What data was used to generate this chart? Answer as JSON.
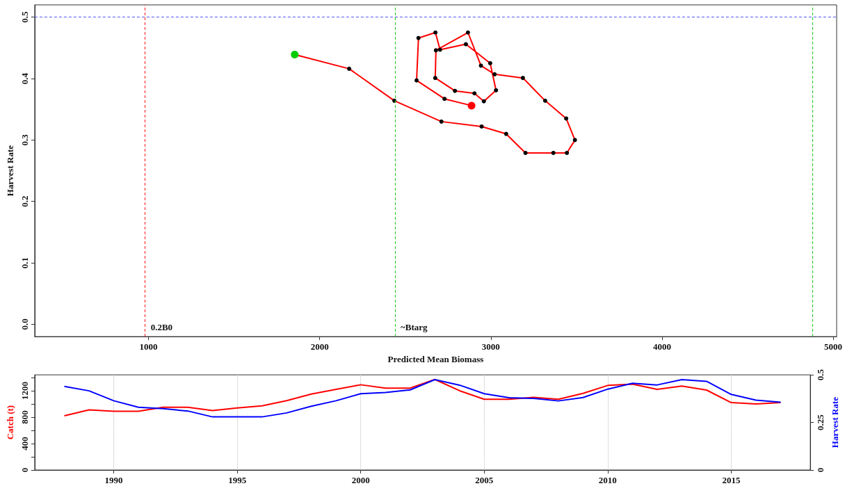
{
  "chart_data": [
    {
      "type": "line",
      "xlabel": "Predicted Mean Biomass",
      "ylabel": "Harvest Rate",
      "xlim": [
        335,
        5020
      ],
      "ylim": [
        -0.02,
        0.52
      ],
      "xticks": [
        1000,
        2000,
        3000,
        4000,
        5000
      ],
      "yticks": [
        {
          "value": 0,
          "label": "0.0"
        },
        {
          "value": 0.1,
          "label": "0.1"
        },
        {
          "value": 0.2,
          "label": "0.2"
        },
        {
          "value": 0.3,
          "label": "0.3"
        },
        {
          "value": 0.4,
          "label": "0.4"
        },
        {
          "value": 0.5,
          "label": "0.5"
        }
      ],
      "marker": "circle",
      "line_style": "solid",
      "grid": false,
      "series": [
        {
          "color": "#ff0000",
          "x": [
            1854,
            2172,
            2436,
            2711,
            2946,
            3089,
            3202,
            3365,
            3444,
            3491,
            3440,
            3317,
            3187,
            3022,
            2942,
            2866,
            2679,
            2675,
            2790,
            2904,
            2959,
            3030,
            2996,
            2854,
            2703,
            2676,
            2577,
            2566,
            2729,
            2887
          ],
          "values": [
            0.439,
            0.416,
            0.364,
            0.33,
            0.322,
            0.31,
            0.279,
            0.279,
            0.279,
            0.3,
            0.335,
            0.364,
            0.401,
            0.407,
            0.421,
            0.475,
            0.446,
            0.401,
            0.38,
            0.376,
            0.363,
            0.381,
            0.425,
            0.456,
            0.447,
            0.475,
            0.466,
            0.397,
            0.367,
            0.356
          ],
          "colors": [
            "#00cc00",
            "#000000",
            "#000000",
            "#000000",
            "#000000",
            "#000000",
            "#000000",
            "#000000",
            "#000000",
            "#000000",
            "#000000",
            "#000000",
            "#000000",
            "#000000",
            "#000000",
            "#000000",
            "#000000",
            "#000000",
            "#000000",
            "#000000",
            "#000000",
            "#000000",
            "#000000",
            "#000000",
            "#000000",
            "#000000",
            "#000000",
            "#000000",
            "#000000",
            "#ff0000"
          ]
        }
      ],
      "ref_lines": [
        {
          "axis": "x",
          "value": 980,
          "label": "0.2B0",
          "color": "#ff3333",
          "line_style": "dashed"
        },
        {
          "axis": "x",
          "value": 2440,
          "label": "~Btarg",
          "color": "#33cc33",
          "line_style": "dashed"
        },
        {
          "axis": "x",
          "value": 4880,
          "color": "#33cc33",
          "line_style": "dashed"
        },
        {
          "axis": "y",
          "value": 0.5,
          "color": "#5555ff",
          "line_style": "dashed"
        }
      ]
    },
    {
      "type": "line",
      "ylabel": "Catch (t)",
      "y2label": "Harvest Rate",
      "xlim": [
        1986.8,
        2018.2
      ],
      "ylim": [
        0,
        1440
      ],
      "y2lim": [
        0,
        0.5
      ],
      "xticks": [
        1990,
        1995,
        2000,
        2005,
        2010,
        2015
      ],
      "yticks": [
        0,
        {
          "value": 200,
          "label": null
        },
        400,
        {
          "value": 600,
          "label": null
        },
        800,
        {
          "value": 1000,
          "label": null
        },
        1200,
        {
          "value": 1400,
          "label": null
        }
      ],
      "y2ticks": [
        0,
        0.25,
        0.5
      ],
      "grid": "x",
      "line_style": "solid",
      "x": [
        1988,
        1989,
        1990,
        1991,
        1992,
        1993,
        1994,
        1995,
        1996,
        1997,
        1998,
        1999,
        2000,
        2001,
        2002,
        2003,
        2004,
        2005,
        2006,
        2007,
        2008,
        2009,
        2010,
        2011,
        2012,
        2013,
        2014,
        2015,
        2016,
        2017
      ],
      "series": [
        {
          "color": "#ff0000",
          "values": [
            820,
            910,
            890,
            890,
            950,
            950,
            900,
            940,
            970,
            1050,
            1150,
            1220,
            1290,
            1240,
            1240,
            1370,
            1200,
            1070,
            1070,
            1100,
            1070,
            1160,
            1280,
            1300,
            1220,
            1270,
            1210,
            1020,
            1000,
            1020
          ]
        },
        {
          "color": "#0000ff",
          "axis": "y2",
          "values": [
            0.439,
            0.416,
            0.364,
            0.33,
            0.322,
            0.31,
            0.279,
            0.279,
            0.279,
            0.3,
            0.335,
            0.364,
            0.401,
            0.407,
            0.421,
            0.475,
            0.446,
            0.401,
            0.38,
            0.376,
            0.363,
            0.381,
            0.425,
            0.456,
            0.447,
            0.475,
            0.466,
            0.397,
            0.367,
            0.356
          ]
        }
      ]
    }
  ]
}
